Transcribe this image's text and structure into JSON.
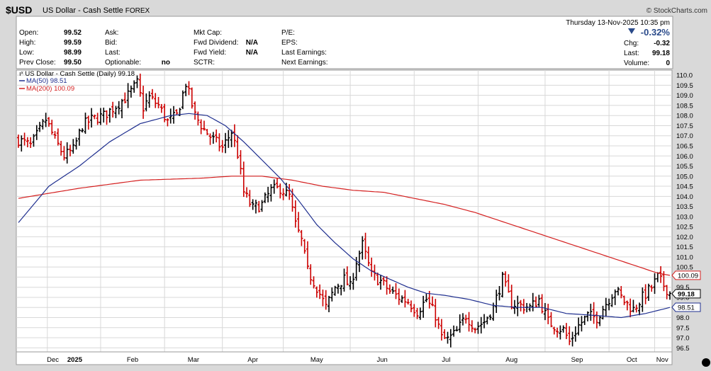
{
  "header": {
    "symbol": "$USD",
    "name": "US Dollar - Cash Settle",
    "exchange": "FOREX",
    "brand": "© StockCharts.com",
    "datetime": "Thursday  13-Nov-2025  10:35 pm"
  },
  "quote": {
    "open_label": "Open:",
    "open": "99.52",
    "high_label": "High:",
    "high": "99.59",
    "low_label": "Low:",
    "low": "98.99",
    "prev_label": "Prev Close:",
    "prev": "99.50",
    "ask_label": "Ask:",
    "bid_label": "Bid:",
    "last_label_mid": "Last:",
    "optionable_label": "Optionable:",
    "optionable": "no",
    "mktcap_label": "Mkt Cap:",
    "fwddiv_label": "Fwd Dividend:",
    "fwddiv": "N/A",
    "fwdyield_label": "Fwd Yield:",
    "fwdyield": "N/A",
    "sctr_label": "SCTR:",
    "pe_label": "P/E:",
    "eps_label": "EPS:",
    "lastearn_label": "Last Earnings:",
    "nextearn_label": "Next Earnings:",
    "change_pct": "-0.32%",
    "chg_label": "Chg:",
    "chg": "-0.32",
    "last_label": "Last:",
    "last": "99.18",
    "volume_label": "Volume:",
    "volume": "0"
  },
  "legend": {
    "price": "US Dollar - Cash Settle (Daily) 99.18",
    "ma50": "MA(50) 98.51",
    "ma200": "MA(200) 100.09"
  },
  "colors": {
    "up": "#000000",
    "down": "#cc0000",
    "ma50": "#1f2f8f",
    "ma200": "#d42020",
    "grid": "#d8d8d8",
    "negative": "#2a4a8a"
  },
  "chart_data": {
    "type": "line",
    "title": "US Dollar - Cash Settle (Daily)",
    "ylim": [
      96.3,
      110.25
    ],
    "y_ticks": [
      "110.0",
      "109.5",
      "109.0",
      "108.5",
      "108.0",
      "107.5",
      "107.0",
      "106.5",
      "106.0",
      "105.5",
      "105.0",
      "104.5",
      "104.0",
      "103.5",
      "103.0",
      "102.5",
      "102.0",
      "101.5",
      "101.0",
      "100.5",
      "100.0",
      "99.5",
      "99.0",
      "98.5",
      "98.0",
      "97.5",
      "97.0",
      "96.5"
    ],
    "x_labels": [
      "Dec",
      "2025",
      "Feb",
      "Mar",
      "Apr",
      "May",
      "Jun",
      "Jul",
      "Aug",
      "Sep",
      "Oct",
      "Nov"
    ],
    "price_knots": [
      [
        0,
        106.8
      ],
      [
        4,
        106.5
      ],
      [
        9,
        107.8
      ],
      [
        12,
        106.8
      ],
      [
        15,
        106.0
      ],
      [
        18,
        106.3
      ],
      [
        21,
        107.5
      ],
      [
        24,
        107.8
      ],
      [
        28,
        108.0
      ],
      [
        33,
        108.6
      ],
      [
        36,
        109.0
      ],
      [
        39,
        109.6
      ],
      [
        41,
        108.4
      ],
      [
        43,
        108.9
      ],
      [
        46,
        108.5
      ],
      [
        49,
        107.7
      ],
      [
        52,
        108.0
      ],
      [
        55,
        109.6
      ],
      [
        58,
        108.0
      ],
      [
        61,
        107.3
      ],
      [
        64,
        106.8
      ],
      [
        67,
        106.4
      ],
      [
        70,
        107.2
      ],
      [
        72,
        106.1
      ],
      [
        74,
        104.2
      ],
      [
        77,
        103.4
      ],
      [
        80,
        103.6
      ],
      [
        83,
        104.3
      ],
      [
        86,
        104.4
      ],
      [
        89,
        104.0
      ],
      [
        91,
        102.6
      ],
      [
        93,
        101.8
      ],
      [
        95,
        100.3
      ],
      [
        98,
        99.5
      ],
      [
        101,
        98.5
      ],
      [
        104,
        99.5
      ],
      [
        107,
        99.9
      ],
      [
        109,
        99.5
      ],
      [
        111,
        100.8
      ],
      [
        113,
        101.6
      ],
      [
        116,
        100.1
      ],
      [
        119,
        99.8
      ],
      [
        122,
        99.3
      ],
      [
        125,
        99.0
      ],
      [
        128,
        98.8
      ],
      [
        131,
        98.3
      ],
      [
        134,
        98.9
      ],
      [
        137,
        98.1
      ],
      [
        139,
        97.0
      ],
      [
        141,
        96.9
      ],
      [
        144,
        97.3
      ],
      [
        147,
        98.1
      ],
      [
        150,
        97.5
      ],
      [
        153,
        97.8
      ],
      [
        156,
        98.5
      ],
      [
        159,
        99.9
      ],
      [
        162,
        98.7
      ],
      [
        165,
        98.6
      ],
      [
        168,
        98.5
      ],
      [
        171,
        98.9
      ],
      [
        174,
        97.8
      ],
      [
        177,
        97.5
      ],
      [
        179,
        97.4
      ],
      [
        181,
        96.8
      ],
      [
        184,
        97.6
      ],
      [
        187,
        98.1
      ],
      [
        190,
        98.0
      ],
      [
        193,
        98.7
      ],
      [
        196,
        99.4
      ],
      [
        199,
        98.8
      ],
      [
        202,
        98.4
      ],
      [
        205,
        99.0
      ],
      [
        208,
        99.5
      ],
      [
        210,
        100.0
      ],
      [
        212,
        99.6
      ],
      [
        214,
        99.2
      ]
    ],
    "ma50_knots": [
      [
        0,
        102.7
      ],
      [
        10,
        104.5
      ],
      [
        20,
        105.5
      ],
      [
        30,
        106.7
      ],
      [
        40,
        107.6
      ],
      [
        50,
        108.0
      ],
      [
        56,
        108.1
      ],
      [
        62,
        108.0
      ],
      [
        68,
        107.5
      ],
      [
        74,
        106.7
      ],
      [
        80,
        105.8
      ],
      [
        86,
        104.9
      ],
      [
        92,
        103.8
      ],
      [
        98,
        102.6
      ],
      [
        104,
        101.7
      ],
      [
        110,
        100.9
      ],
      [
        116,
        100.3
      ],
      [
        122,
        99.9
      ],
      [
        128,
        99.5
      ],
      [
        134,
        99.2
      ],
      [
        140,
        99.1
      ],
      [
        148,
        98.9
      ],
      [
        156,
        98.6
      ],
      [
        164,
        98.5
      ],
      [
        172,
        98.5
      ],
      [
        180,
        98.2
      ],
      [
        190,
        98.1
      ],
      [
        198,
        98.0
      ],
      [
        206,
        98.2
      ],
      [
        214,
        98.5
      ]
    ],
    "ma200_knots": [
      [
        0,
        103.9
      ],
      [
        20,
        104.4
      ],
      [
        40,
        104.8
      ],
      [
        60,
        104.9
      ],
      [
        70,
        105.0
      ],
      [
        80,
        105.0
      ],
      [
        90,
        104.8
      ],
      [
        100,
        104.5
      ],
      [
        110,
        104.3
      ],
      [
        120,
        104.2
      ],
      [
        130,
        103.9
      ],
      [
        140,
        103.6
      ],
      [
        150,
        103.2
      ],
      [
        160,
        102.7
      ],
      [
        170,
        102.2
      ],
      [
        180,
        101.7
      ],
      [
        190,
        101.2
      ],
      [
        200,
        100.7
      ],
      [
        210,
        100.2
      ],
      [
        214,
        100.09
      ]
    ],
    "last": 99.18,
    "ma50_last": 98.51,
    "ma200_last": 100.09
  }
}
